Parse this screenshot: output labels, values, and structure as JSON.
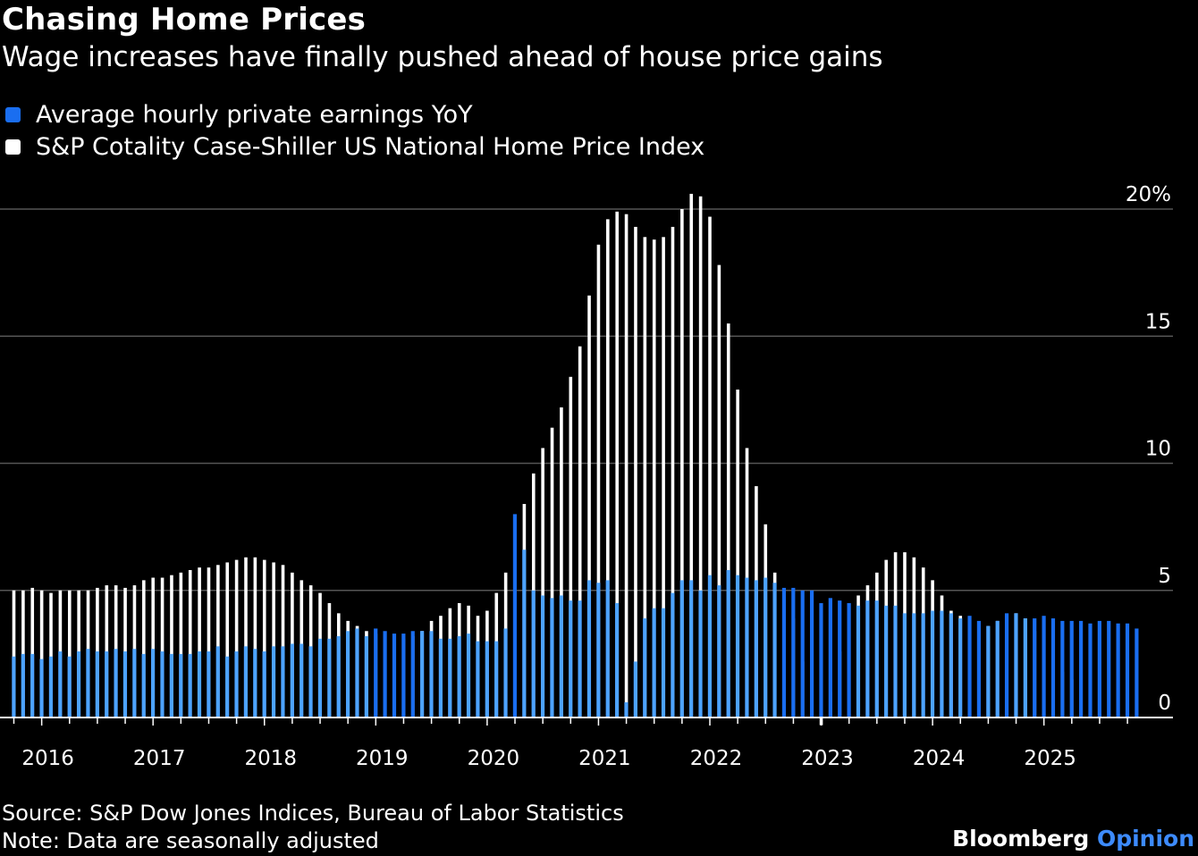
{
  "title": "Chasing Home Prices",
  "subtitle": "Wage increases have finally pushed ahead of house price gains",
  "footer": {
    "source": "Source: S&P Dow Jones Indices, Bureau of Labor Statistics",
    "note": "Note: Data are seasonally adjusted",
    "brand_main": "Bloomberg",
    "brand_accent": "Opinion"
  },
  "colors": {
    "background": "#000000",
    "wages": "#1a6ef0",
    "wages_light": "#4da3ff",
    "home_prices": "#ffffff",
    "grid": "#555555"
  },
  "chart_data": {
    "type": "bar",
    "start": "2015-10",
    "frequency": "monthly",
    "ylim": [
      -0.5,
      21
    ],
    "yticks": [
      0,
      5,
      10,
      15,
      20
    ],
    "ytick_labels": [
      "0",
      "5",
      "10",
      "15",
      "20%"
    ],
    "xtick_labels": [
      "2016",
      "2017",
      "2018",
      "2019",
      "2020",
      "2021",
      "2022",
      "2023",
      "2024",
      "2025"
    ],
    "legend_position": "top-left",
    "grid": true,
    "series": [
      {
        "name": "Average hourly private earnings YoY",
        "values": [
          2.4,
          2.5,
          2.5,
          2.3,
          2.4,
          2.6,
          2.4,
          2.6,
          2.7,
          2.6,
          2.6,
          2.7,
          2.6,
          2.7,
          2.5,
          2.7,
          2.6,
          2.5,
          2.5,
          2.5,
          2.6,
          2.6,
          2.8,
          2.4,
          2.6,
          2.8,
          2.7,
          2.6,
          2.8,
          2.8,
          2.9,
          2.9,
          2.8,
          3.1,
          3.1,
          3.2,
          3.4,
          3.5,
          3.2,
          3.5,
          3.4,
          3.3,
          3.3,
          3.4,
          3.4,
          3.4,
          3.1,
          3.1,
          3.2,
          3.3,
          3.0,
          3.0,
          3.0,
          3.5,
          8.0,
          6.6,
          5.0,
          4.8,
          4.7,
          4.8,
          4.6,
          4.6,
          5.4,
          5.3,
          5.4,
          4.5,
          0.6,
          2.2,
          3.9,
          4.3,
          4.3,
          4.9,
          5.4,
          5.4,
          5.0,
          5.6,
          5.2,
          5.8,
          5.6,
          5.5,
          5.4,
          5.5,
          5.3,
          5.1,
          5.1,
          5.0,
          5.0,
          4.5,
          4.7,
          4.6,
          4.5,
          4.4,
          4.6,
          4.6,
          4.4,
          4.4,
          4.1,
          4.1,
          4.1,
          4.2,
          4.2,
          4.1,
          3.9,
          4.0,
          3.8,
          3.6,
          3.8,
          4.1,
          4.1,
          3.9,
          3.9,
          4.0,
          3.9,
          3.8,
          3.8,
          3.8,
          3.7,
          3.8,
          3.8,
          3.7,
          3.7,
          3.5
        ]
      },
      {
        "name": "S&P Cotality Case-Shiller US National Home Price Index",
        "values": [
          5.0,
          5.0,
          5.1,
          5.0,
          4.9,
          5.0,
          5.0,
          5.0,
          5.0,
          5.1,
          5.2,
          5.2,
          5.1,
          5.2,
          5.4,
          5.5,
          5.5,
          5.6,
          5.7,
          5.8,
          5.9,
          5.9,
          6.0,
          6.1,
          6.2,
          6.3,
          6.3,
          6.2,
          6.1,
          6.0,
          5.7,
          5.4,
          5.2,
          4.9,
          4.5,
          4.1,
          3.8,
          3.6,
          3.4,
          3.3,
          3.2,
          3.2,
          3.1,
          3.2,
          3.4,
          3.8,
          4.0,
          4.3,
          4.5,
          4.4,
          4.0,
          4.2,
          4.9,
          5.7,
          7.0,
          8.4,
          9.6,
          10.6,
          11.4,
          12.2,
          13.4,
          14.6,
          16.6,
          18.6,
          19.6,
          19.9,
          19.8,
          19.3,
          18.9,
          18.8,
          18.9,
          19.3,
          20.0,
          20.6,
          20.5,
          19.7,
          17.8,
          15.5,
          12.9,
          10.6,
          9.1,
          7.6,
          5.7,
          4.6,
          3.9,
          2.2,
          0.8,
          -0.3,
          1.0,
          2.6,
          3.9,
          4.8,
          5.2,
          5.7,
          6.2,
          6.5,
          6.5,
          6.3,
          5.9,
          5.4,
          4.8,
          4.2,
          4.0,
          3.8,
          3.6,
          3.6,
          3.8,
          4.0,
          4.1,
          3.9,
          3.4,
          2.7,
          2.2,
          1.8,
          1.5,
          1.4,
          1.2,
          0.0,
          0.0,
          0.0,
          0.0,
          0.0
        ]
      }
    ]
  }
}
